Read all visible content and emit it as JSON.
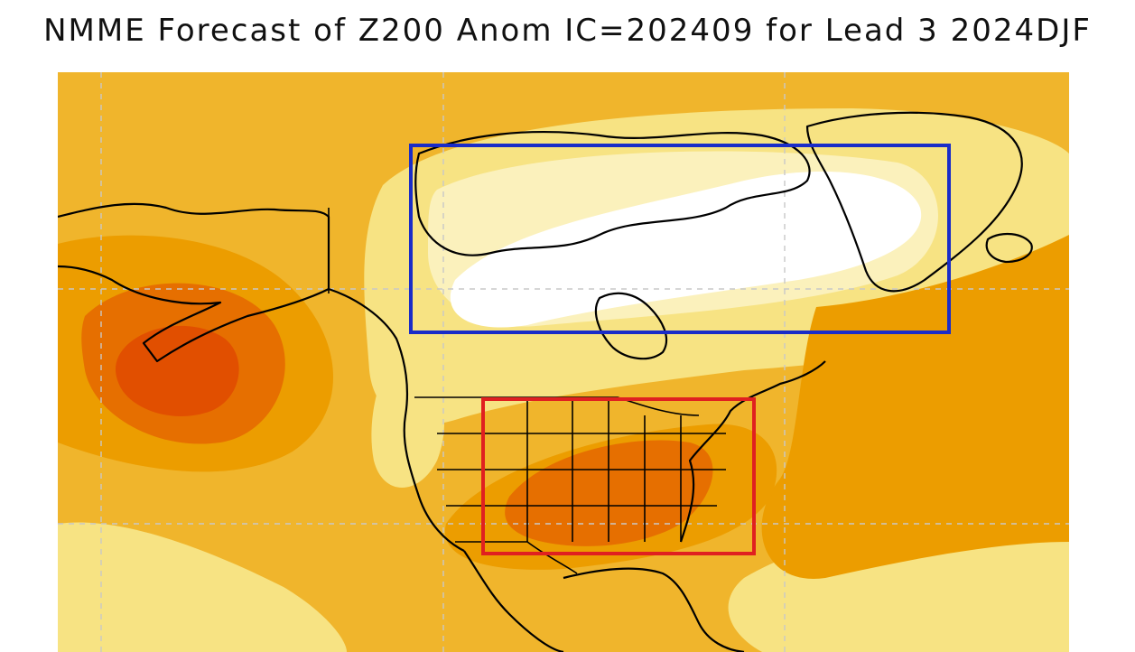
{
  "title": "NMME Forecast of Z200 Anom IC=202409 for Lead 3 2024DJF",
  "colors": {
    "background": "#f0b52c",
    "light_yellow": "#f7e383",
    "pale_yellow": "#fbf1bc",
    "white": "#ffffff",
    "orange": "#ec9d00",
    "dark_orange": "#e66f00",
    "deep_orange": "#e14f00",
    "box_blue": "#1a2cc8",
    "box_red": "#e02020"
  },
  "annotations": [
    {
      "name": "canada-arctic-box",
      "color": "box_blue"
    },
    {
      "name": "united-states-box",
      "color": "box_red"
    }
  ]
}
